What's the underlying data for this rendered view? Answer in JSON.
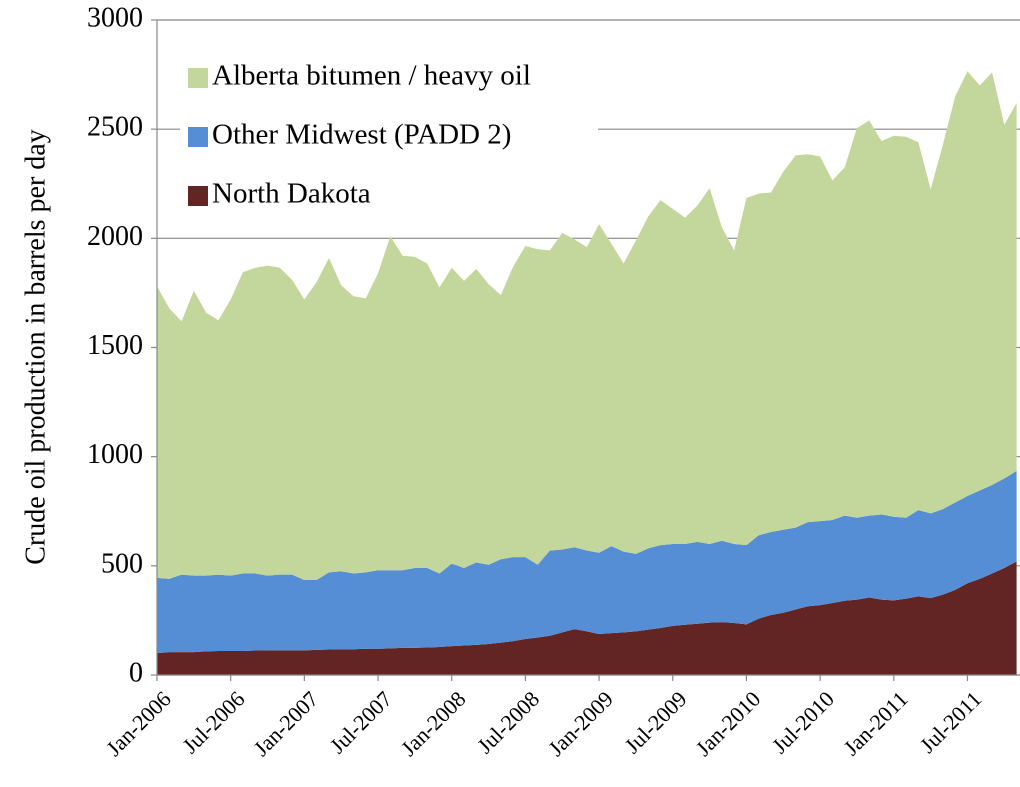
{
  "chart_data": {
    "type": "stacked_area",
    "y_label": "Crude oil production in barrels per day",
    "categories": [
      "Jan-2006",
      null,
      null,
      null,
      null,
      null,
      "Jul-2006",
      null,
      null,
      null,
      null,
      null,
      "Jan-2007",
      null,
      null,
      null,
      null,
      null,
      "Jul-2007",
      null,
      null,
      null,
      null,
      null,
      "Jan-2008",
      null,
      null,
      null,
      null,
      null,
      "Jul-2008",
      null,
      null,
      null,
      null,
      null,
      "Jan-2009",
      null,
      null,
      null,
      null,
      null,
      "Jul-2009",
      null,
      null,
      null,
      null,
      null,
      "Jan-2010",
      null,
      null,
      null,
      null,
      null,
      "Jul-2010",
      null,
      null,
      null,
      null,
      null,
      "Jan-2011",
      null,
      null,
      null,
      null,
      null,
      "Jul-2011",
      null,
      null,
      null,
      null
    ],
    "series": [
      {
        "name": "Alberta bitumen / heavy oil",
        "color": "#c3d69b",
        "values": [
          1335,
          1240,
          1160,
          1305,
          1205,
          1165,
          1265,
          1380,
          1400,
          1420,
          1405,
          1350,
          1285,
          1365,
          1440,
          1310,
          1270,
          1255,
          1360,
          1530,
          1440,
          1425,
          1395,
          1310,
          1355,
          1315,
          1345,
          1285,
          1210,
          1330,
          1425,
          1445,
          1375,
          1450,
          1410,
          1390,
          1505,
          1385,
          1320,
          1435,
          1520,
          1580,
          1535,
          1495,
          1540,
          1630,
          1435,
          1345,
          1590,
          1565,
          1555,
          1640,
          1705,
          1685,
          1670,
          1555,
          1595,
          1785,
          1810,
          1710,
          1745,
          1745,
          1685,
          1485,
          1670,
          1860,
          1945,
          1855,
          1890,
          1620,
          1685
        ]
      },
      {
        "name": "Other Midwest (PADD 2)",
        "color": "#558ed5",
        "values": [
          345,
          335,
          355,
          350,
          347,
          350,
          345,
          355,
          353,
          342,
          347,
          347,
          322,
          320,
          353,
          357,
          347,
          350,
          360,
          358,
          356,
          365,
          364,
          337,
          378,
          355,
          377,
          363,
          382,
          385,
          375,
          333,
          390,
          380,
          375,
          370,
          372,
          398,
          370,
          355,
          372,
          380,
          375,
          370,
          375,
          360,
          373,
          362,
          363,
          382,
          380,
          380,
          375,
          385,
          385,
          380,
          390,
          375,
          375,
          390,
          383,
          370,
          395,
          388,
          392,
          400,
          400,
          405,
          405,
          410,
          415
        ]
      },
      {
        "name": "North Dakota",
        "color": "#632523",
        "values": [
          100,
          105,
          105,
          105,
          108,
          110,
          110,
          110,
          112,
          113,
          113,
          113,
          113,
          115,
          117,
          118,
          118,
          120,
          120,
          122,
          124,
          125,
          126,
          128,
          132,
          135,
          138,
          142,
          148,
          155,
          165,
          172,
          180,
          195,
          210,
          200,
          188,
          192,
          195,
          200,
          208,
          215,
          225,
          230,
          235,
          240,
          242,
          238,
          232,
          258,
          275,
          285,
          300,
          315,
          320,
          330,
          340,
          345,
          355,
          345,
          342,
          350,
          360,
          352,
          368,
          390,
          420,
          440,
          465,
          490,
          520
        ]
      }
    ],
    "ylim": [
      0,
      3000
    ],
    "yticks": [
      0,
      500,
      1000,
      1500,
      2000,
      2500,
      3000
    ],
    "grid": true
  }
}
